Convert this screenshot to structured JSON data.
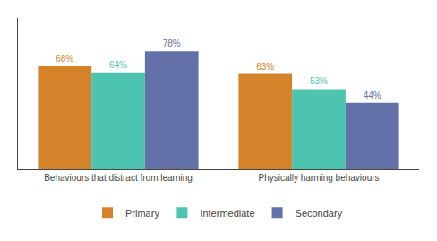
{
  "chart_data": {
    "type": "bar",
    "categories": [
      "Behaviours that distract from learning",
      "Physically harming behaviours"
    ],
    "series": [
      {
        "name": "Primary",
        "color": "#d4832a",
        "values": [
          68,
          63
        ],
        "value_labels": [
          "68%",
          "63%"
        ]
      },
      {
        "name": "Intermediate",
        "color": "#4dc4b0",
        "values": [
          64,
          53
        ],
        "value_labels": [
          "64%",
          "53%"
        ]
      },
      {
        "name": "Secondary",
        "color": "#6470a8",
        "values": [
          78,
          44
        ],
        "value_labels": [
          "78%",
          "44%"
        ]
      }
    ],
    "ylim": [
      0,
      100
    ],
    "grid": false,
    "legend": "bottom",
    "data_labels": true,
    "tick_labels": "x"
  }
}
